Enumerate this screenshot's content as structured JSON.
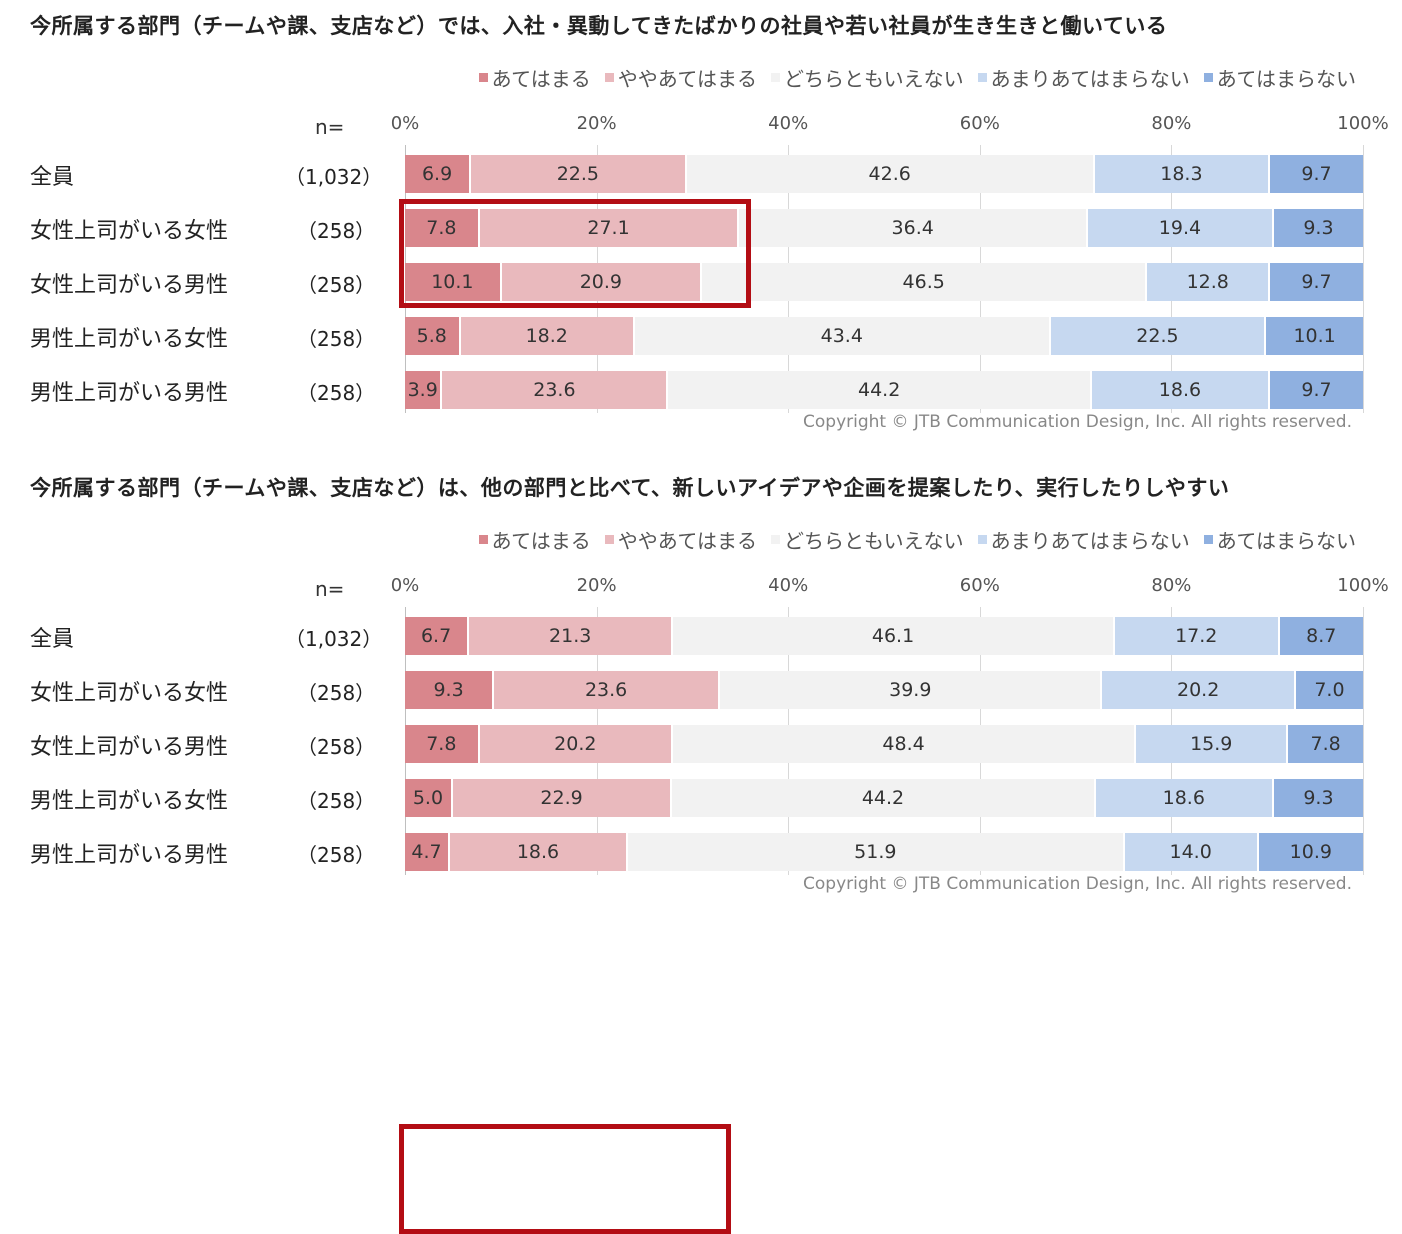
{
  "legend": [
    "あてはまる",
    "ややあてはまる",
    "どちらともいえない",
    "あまりあてはまらない",
    "あてはまらない"
  ],
  "colors": [
    "#d9868c",
    "#e9b9bd",
    "#f2f2f2",
    "#c6d8f0",
    "#8fb0e0"
  ],
  "n_label": "n=",
  "ticks": [
    "0%",
    "20%",
    "40%",
    "60%",
    "80%",
    "100%"
  ],
  "copyright": "Copyright © JTB Communication Design, Inc. All rights reserved.",
  "chart_data": [
    {
      "type": "bar",
      "stacked": true,
      "orientation": "horizontal",
      "title": "今所属する部門（チームや課、支店など）では、入社・異動してきたばかりの社員や若い社員が生き生きと働いている",
      "categories": [
        "全員",
        "女性上司がいる女性",
        "女性上司がいる男性",
        "男性上司がいる女性",
        "男性上司がいる男性"
      ],
      "n": [
        "（1,032）",
        "（258）",
        "（258）",
        "（258）",
        "（258）"
      ],
      "series": [
        {
          "name": "あてはまる",
          "values": [
            6.9,
            7.8,
            10.1,
            5.8,
            3.9
          ]
        },
        {
          "name": "ややあてはまる",
          "values": [
            22.5,
            27.1,
            20.9,
            18.2,
            23.6
          ]
        },
        {
          "name": "どちらともいえない",
          "values": [
            42.6,
            36.4,
            46.5,
            43.4,
            44.2
          ]
        },
        {
          "name": "あまりあてはまらない",
          "values": [
            18.3,
            19.4,
            12.8,
            22.5,
            18.6
          ]
        },
        {
          "name": "あてはまらない",
          "values": [
            9.7,
            9.3,
            9.7,
            10.1,
            9.7
          ]
        }
      ],
      "xlim": [
        0,
        100
      ],
      "highlight_rows": [
        1,
        2
      ]
    },
    {
      "type": "bar",
      "stacked": true,
      "orientation": "horizontal",
      "title": "今所属する部門（チームや課、支店など）は、他の部門と比べて、新しいアイデアや企画を提案したり、実行したりしやすい",
      "categories": [
        "全員",
        "女性上司がいる女性",
        "女性上司がいる男性",
        "男性上司がいる女性",
        "男性上司がいる男性"
      ],
      "n": [
        "（1,032）",
        "（258）",
        "（258）",
        "（258）",
        "（258）"
      ],
      "series": [
        {
          "name": "あてはまる",
          "values": [
            6.7,
            9.3,
            7.8,
            5.0,
            4.7
          ]
        },
        {
          "name": "ややあてはまる",
          "values": [
            21.3,
            23.6,
            20.2,
            22.9,
            18.6
          ]
        },
        {
          "name": "どちらともいえない",
          "values": [
            46.1,
            39.9,
            48.4,
            44.2,
            51.9
          ]
        },
        {
          "name": "あまりあてはまらない",
          "values": [
            17.2,
            20.2,
            15.9,
            18.6,
            14.0
          ]
        },
        {
          "name": "あてはまらない",
          "values": [
            8.7,
            7.0,
            7.8,
            9.3,
            10.9
          ]
        }
      ],
      "xlim": [
        0,
        100
      ],
      "highlight_rows": [
        1,
        2
      ]
    }
  ]
}
